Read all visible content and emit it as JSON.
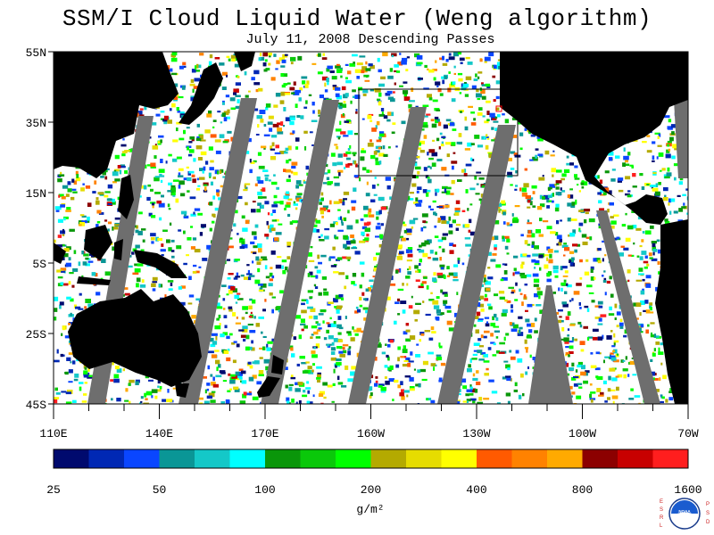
{
  "title": "SSM/I Cloud Liquid Water (Weng algorithm)",
  "subtitle": "July 11, 2008  Descending Passes",
  "map": {
    "lat_labels": [
      "55N",
      "35N",
      "15N",
      "5S",
      "25S",
      "45S"
    ],
    "lon_labels": [
      "110E",
      "140E",
      "170E",
      "160W",
      "130W",
      "100W",
      "70W"
    ],
    "colors": {
      "land": "#000000",
      "no_data": "#6e6e6e",
      "ocean_clear": "#ffffff",
      "box": "#000000",
      "marker": "#ff0000"
    }
  },
  "colorbar": {
    "labels": [
      "25",
      "50",
      "100",
      "200",
      "400",
      "800",
      "1600"
    ],
    "units": "g/m²",
    "colors": [
      "#000a6e",
      "#0028b4",
      "#0a46ff",
      "#0a9696",
      "#14c8c8",
      "#00ffff",
      "#0a960a",
      "#0ac80a",
      "#00ff00",
      "#b4aa00",
      "#e6dc00",
      "#ffff00",
      "#ff5a00",
      "#ff8200",
      "#ffaa00",
      "#8c0000",
      "#c80000",
      "#ff1e1e"
    ]
  },
  "logo": {
    "left_letters": "ESRL",
    "right_letters": "PSD",
    "center_text": "NOAA"
  }
}
